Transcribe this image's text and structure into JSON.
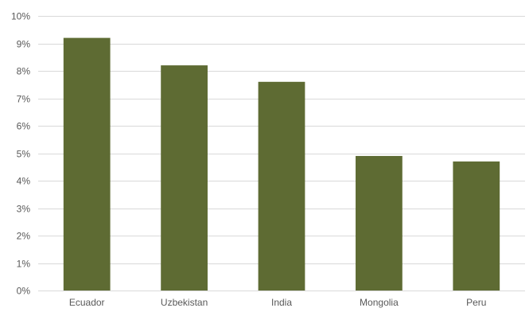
{
  "chart_data": {
    "type": "bar",
    "title": "",
    "xlabel": "",
    "ylabel": "",
    "categories": [
      "Ecuador",
      "Uzbekistan",
      "India",
      "Mongolia",
      "Peru"
    ],
    "values": [
      9.2,
      8.2,
      7.6,
      4.9,
      4.7
    ],
    "value_unit": "%",
    "ylim": [
      0,
      10
    ],
    "yticks": [
      0,
      1,
      2,
      3,
      4,
      5,
      6,
      7,
      8,
      9,
      10
    ],
    "ytick_labels": [
      "0%",
      "1%",
      "2%",
      "3%",
      "4%",
      "5%",
      "6%",
      "7%",
      "8%",
      "9%",
      "10%"
    ],
    "grid": true,
    "legend": "none",
    "colors": {
      "bar": "#5e6b33",
      "gridline": "#d9d9d9",
      "tick_text": "#595959"
    }
  }
}
